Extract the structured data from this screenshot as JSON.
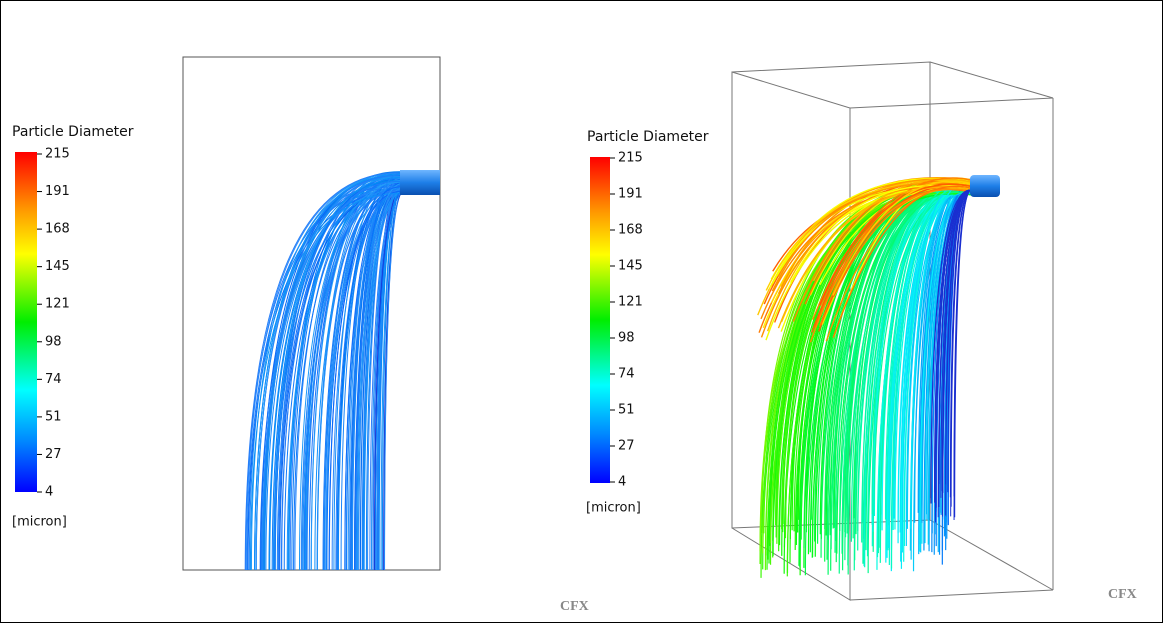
{
  "panels": [
    {
      "legend": {
        "title": "Particle Diameter",
        "ticks": [
          215,
          191,
          168,
          145,
          121,
          98,
          74,
          51,
          27,
          4
        ],
        "unit": "[micron]"
      },
      "logo": "CFX"
    },
    {
      "legend": {
        "title": "Particle Diameter",
        "ticks": [
          215,
          191,
          168,
          145,
          121,
          98,
          74,
          51,
          27,
          4
        ],
        "unit": "[micron]"
      },
      "logo": "CFX"
    }
  ]
}
